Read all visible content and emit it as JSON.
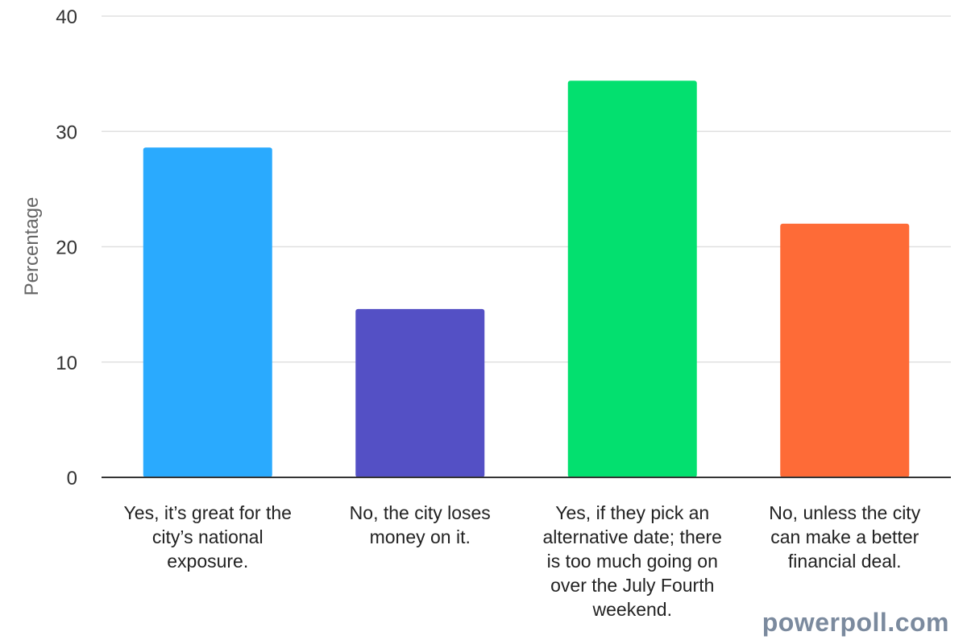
{
  "chart_data": {
    "type": "bar",
    "title": "",
    "xlabel": "",
    "ylabel": "Percentage",
    "ylim": [
      0,
      40
    ],
    "yticks": [
      0,
      10,
      20,
      30,
      40
    ],
    "grid": true,
    "legend": "none",
    "categories": [
      "Yes, it’s great for the city’s national exposure.",
      "No, the city loses money on it.",
      "Yes, if they pick an alternative date; there is too much going on over the July Fourth weekend.",
      "No, unless the city can make a better financial deal."
    ],
    "category_lines": [
      [
        "Yes, it’s great for the",
        "city’s national",
        "exposure."
      ],
      [
        "No, the city loses",
        "money on it."
      ],
      [
        "Yes, if they pick an",
        "alternative date; there",
        "is too much going on",
        "over the July Fourth",
        "weekend."
      ],
      [
        "No, unless the city",
        "can make a better",
        "financial deal."
      ]
    ],
    "values": [
      28.6,
      14.6,
      34.4,
      22.0
    ],
    "colors": [
      "#2aaafe",
      "#5450c5",
      "#03e06f",
      "#fe6b37"
    ]
  },
  "watermark": "powerpoll.com"
}
